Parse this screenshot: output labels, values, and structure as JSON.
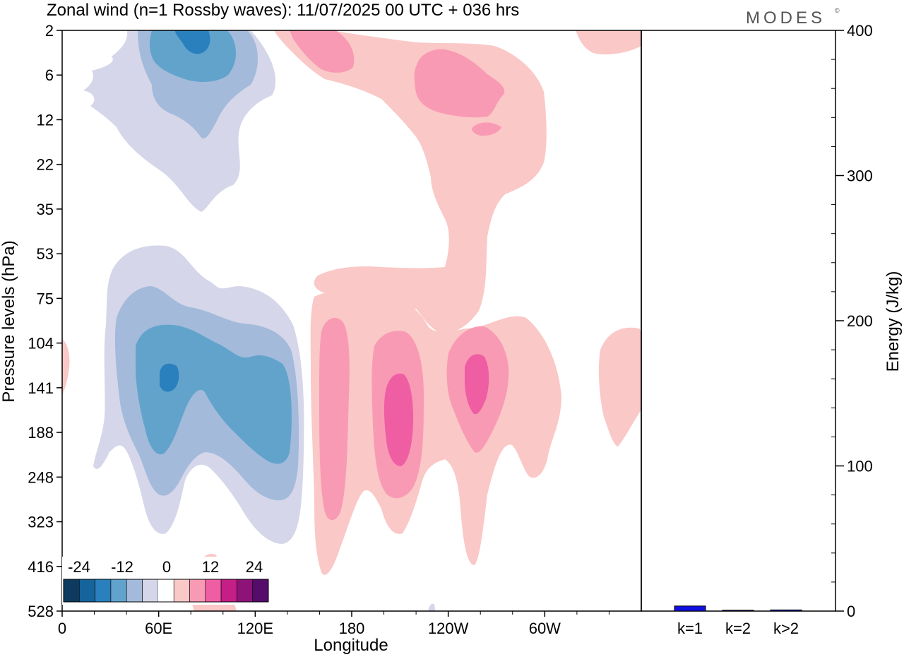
{
  "title": "Zonal wind (n=1 Rossby waves):  11/07/2025  00 UTC  + 036 hrs",
  "brand": "MODES",
  "brand_mark": "©",
  "chart_data": [
    {
      "type": "heatmap",
      "title": "Zonal wind (n=1 Rossby waves):  11/07/2025  00 UTC  + 036 hrs",
      "xlabel": "Longitude",
      "ylabel": "Pressure levels (hPa)",
      "x_ticks": [
        "0",
        "60E",
        "120E",
        "180",
        "120W",
        "60W"
      ],
      "y_ticks": [
        "2",
        "6",
        "12",
        "22",
        "35",
        "53",
        "75",
        "104",
        "141",
        "188",
        "248",
        "323",
        "416",
        "528"
      ],
      "colorbar": {
        "labels": [
          "-24",
          "-12",
          "0",
          "12",
          "24"
        ],
        "colors": [
          "#0d3a5e",
          "#15649c",
          "#2980bd",
          "#62a3cc",
          "#a3bada",
          "#d5d6e9",
          "#ffffff",
          "#fac8c6",
          "#f99ab4",
          "#ef5ea3",
          "#c51f87",
          "#8d1378",
          "#550c6a"
        ]
      },
      "contours": [
        {
          "name": "neg-1",
          "level": -4,
          "value": "negative"
        },
        {
          "name": "neg-2",
          "level": -8,
          "value": "negative"
        },
        {
          "name": "neg-3",
          "level": -12,
          "value": "negative"
        },
        {
          "name": "neg-4",
          "level": -16,
          "value": "negative"
        },
        {
          "name": "pos-1",
          "level": 4,
          "value": "positive"
        },
        {
          "name": "pos-2",
          "level": 8,
          "value": "positive"
        },
        {
          "name": "pos-3",
          "level": 12,
          "value": "positive"
        }
      ]
    },
    {
      "type": "bar",
      "categories": [
        "k=1",
        "k=2",
        "k>2"
      ],
      "values": [
        3.5,
        0.6,
        0.8
      ],
      "ylabel": "Energy (J/kg)",
      "ylim": [
        0,
        400
      ],
      "y_ticks": [
        "0",
        "100",
        "200",
        "300",
        "400"
      ],
      "bar_color": "#1010e0"
    }
  ]
}
